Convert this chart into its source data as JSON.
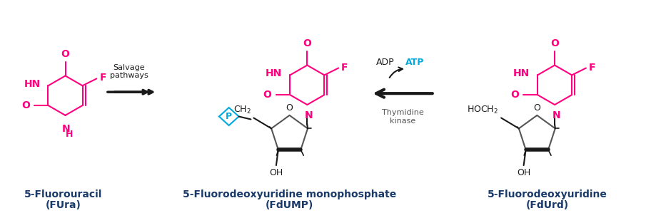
{
  "bg_color": "#ffffff",
  "magenta": "#FF007F",
  "cyan": "#00AADD",
  "black": "#1a1a1a",
  "dark_gray": "#555555",
  "label_color": "#1a3a6a",
  "arrow_color": "#1a1a1a",
  "figsize": [
    9.33,
    2.99
  ],
  "dpi": 100,
  "fura_label1": "5-Fluorouracil",
  "fura_label2": "(FUra)",
  "fdump_label1": "5-Fluorodeoxyuridine monophosphate",
  "fdump_label2": "(FdUMP)",
  "fdurd_label1": "5-Fluorodeoxyuridine",
  "fdurd_label2": "(FdUrd)",
  "salvage_text": "Salvage\npathways",
  "adp_text": "ADP",
  "atp_text": "ATP",
  "thymidine_text": "Thymidine\nkinase"
}
